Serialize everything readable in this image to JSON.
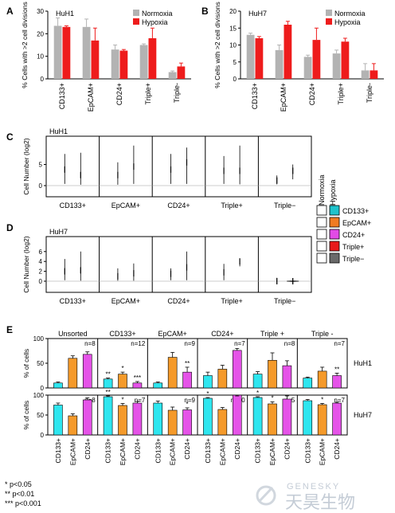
{
  "colors": {
    "normoxia": "#b3b3b3",
    "hypoxia": "#ee1c1c",
    "cd133": "#1fc3cc",
    "epcam": "#f07b22",
    "cd24": "#e24be6",
    "triple_pos": "#e8191b",
    "triple_neg": "#6a6a6a",
    "e_cd133": "#2ee6ef",
    "e_epcam": "#f59a2a",
    "e_cd24": "#e553e8"
  },
  "panel_letters": {
    "a": "A",
    "b": "B",
    "c": "C",
    "d": "D",
    "e": "E"
  },
  "footnotes": [
    "* p<0.05",
    "** p<0.01",
    "*** p<0.001"
  ],
  "watermark": {
    "latin": "GENESKY",
    "chinese": "天昊生物"
  },
  "chart_data": [
    {
      "id": "A",
      "type": "bar",
      "title": "HuH1",
      "ylabel": "% Cells with >2 cell divisions",
      "ylim": [
        0,
        30
      ],
      "yticks": [
        0,
        10,
        20,
        30
      ],
      "legend": "top-right",
      "categories": [
        "CD133+",
        "EpCAM+",
        "CD24+",
        "Triple+",
        "Triple-"
      ],
      "series": [
        {
          "name": "Normoxia",
          "values": [
            23.5,
            23,
            13,
            15,
            3
          ],
          "errors": [
            3.5,
            3.5,
            2,
            0.5,
            0.5
          ]
        },
        {
          "name": "Hypoxia",
          "values": [
            23,
            17,
            12.5,
            18,
            5.5
          ],
          "errors": [
            0.5,
            5.5,
            0.5,
            4.5,
            1.5
          ]
        }
      ]
    },
    {
      "id": "B",
      "type": "bar",
      "title": "HuH7",
      "ylabel": "% Cells with >2 cell divisions",
      "ylim": [
        0,
        20
      ],
      "yticks": [
        0,
        5,
        10,
        15,
        20
      ],
      "legend": "top-right",
      "categories": [
        "CD133+",
        "EpCAM+",
        "CD24+",
        "Triple+",
        "Triple-"
      ],
      "series": [
        {
          "name": "Normoxia",
          "values": [
            13,
            8.5,
            6.5,
            7.5,
            2.5
          ],
          "errors": [
            0.5,
            1.5,
            0.5,
            1,
            2
          ]
        },
        {
          "name": "Hypoxia",
          "values": [
            12,
            16,
            11.5,
            11,
            2.5
          ],
          "errors": [
            0.5,
            1,
            3.5,
            1,
            2
          ]
        }
      ]
    },
    {
      "id": "C",
      "type": "violin",
      "title": "HuH1",
      "ylabel": "Cell Number (log2)",
      "yticks": [
        0,
        5
      ],
      "categories": [
        "CD133+",
        "EpCAM+",
        "CD24+",
        "Triple+",
        "Triple−"
      ],
      "colors": [
        "#1fc3cc",
        "#f07b22",
        "#e24be6",
        "#e8191b",
        "#6a6a6a"
      ],
      "normoxia": [
        {
          "center": 3.8,
          "min": 0.4,
          "max": 7.5,
          "width": 0.65
        },
        {
          "center": 2.5,
          "min": 0.2,
          "max": 5.5,
          "width": 0.8
        },
        {
          "center": 3.8,
          "min": 0.4,
          "max": 7.5,
          "width": 0.6
        },
        {
          "center": 3.5,
          "min": 0.4,
          "max": 7.0,
          "width": 0.6
        },
        {
          "center": 1.2,
          "min": 0.3,
          "max": 2.4,
          "width": 0.9
        }
      ],
      "hypoxia": [
        {
          "center": 2.5,
          "min": 0.2,
          "max": 7.8,
          "width": 0.6
        },
        {
          "center": 4.5,
          "min": 0.4,
          "max": 9.5,
          "width": 0.6
        },
        {
          "center": 5.5,
          "min": 0.4,
          "max": 9.0,
          "width": 0.55
        },
        {
          "center": 3.5,
          "min": 0.3,
          "max": 9.5,
          "width": 0.5
        },
        {
          "center": 3.5,
          "min": 1.5,
          "max": 5.0,
          "width": 0.7
        }
      ]
    },
    {
      "id": "D",
      "type": "violin",
      "title": "HuH7",
      "ylabel": "Cell Number (log2)",
      "yticks": [
        0,
        2,
        4,
        6
      ],
      "categories": [
        "CD133+",
        "EpCAM+",
        "CD24+",
        "Triple+",
        "Triple−"
      ],
      "colors": [
        "#1fc3cc",
        "#f07b22",
        "#e24be6",
        "#e8191b",
        "#6a6a6a"
      ],
      "normoxia": [
        {
          "center": 2.0,
          "min": 0.2,
          "max": 4.5,
          "width": 0.75
        },
        {
          "center": 1.0,
          "min": 0.1,
          "max": 2.6,
          "width": 1.0
        },
        {
          "center": 1.5,
          "min": 0.2,
          "max": 2.6,
          "width": 0.8
        },
        {
          "center": 1.8,
          "min": 0.2,
          "max": 3.5,
          "width": 0.75
        },
        {
          "center": 0.0,
          "min": -0.6,
          "max": 0.7,
          "width": 0.85
        }
      ],
      "hypoxia": [
        {
          "center": 2.2,
          "min": 0.1,
          "max": 6.0,
          "width": 0.7
        },
        {
          "center": 1.6,
          "min": 0.1,
          "max": 3.6,
          "width": 0.75
        },
        {
          "center": 2.8,
          "min": 0.2,
          "max": 6.0,
          "width": 0.5
        },
        {
          "center": 4.0,
          "min": 3.0,
          "max": 4.6,
          "width": 1.0
        },
        {
          "center": 0.0,
          "min": -0.6,
          "max": 0.6,
          "width": 0.75
        }
      ]
    },
    {
      "id": "E",
      "type": "bar",
      "title": "",
      "ylabel": "% of cells",
      "ylim": [
        0,
        100
      ],
      "yticks": [
        0,
        50,
        100
      ],
      "groups": [
        "Unsorted",
        "CD133+",
        "EpCAM+",
        "CD24+",
        "Triple +",
        "Triple -"
      ],
      "categories": [
        "CD133+",
        "EpCAM+",
        "CD24+"
      ],
      "rows": [
        {
          "name": "HuH1",
          "n": [
            "n=8",
            "n=12",
            "n=9",
            "n=7",
            "n=8",
            "n=7"
          ],
          "values": [
            [
              10,
              60,
              68
            ],
            [
              18,
              28,
              10
            ],
            [
              10,
              62,
              32
            ],
            [
              25,
              38,
              76
            ],
            [
              28,
              56,
              45
            ],
            [
              20,
              34,
              25
            ]
          ],
          "errors": [
            [
              2,
              5,
              5
            ],
            [
              2,
              4,
              3
            ],
            [
              2,
              10,
              10
            ],
            [
              7,
              8,
              4
            ],
            [
              5,
              15,
              10
            ],
            [
              2,
              8,
              5
            ]
          ],
          "stars": [
            [
              "",
              "",
              ""
            ],
            [
              "**",
              "*",
              "***"
            ],
            [
              "",
              "",
              "**"
            ],
            [
              "",
              "",
              ""
            ],
            [
              "",
              "",
              ""
            ],
            [
              "",
              "",
              "**"
            ]
          ]
        },
        {
          "name": "HuH7",
          "n": [
            "n=8",
            "n=7",
            "n=9",
            "n=10",
            "n=5",
            "n=7"
          ],
          "values": [
            [
              75,
              48,
              88
            ],
            [
              96,
              74,
              80
            ],
            [
              80,
              62,
              63
            ],
            [
              92,
              64,
              100
            ],
            [
              94,
              78,
              90
            ],
            [
              86,
              76,
              80
            ]
          ],
          "errors": [
            [
              5,
              5,
              5
            ],
            [
              2,
              5,
              4
            ],
            [
              5,
              8,
              5
            ],
            [
              2,
              5,
              2
            ],
            [
              2,
              5,
              8
            ],
            [
              3,
              3,
              2
            ]
          ],
          "stars": [
            [
              "",
              "",
              ""
            ],
            [
              "**",
              "*",
              ""
            ],
            [
              "",
              "",
              "*"
            ],
            [
              "*",
              "",
              ""
            ],
            [
              "*",
              "*",
              ""
            ],
            [
              "",
              "*",
              ""
            ]
          ]
        }
      ],
      "legend": {
        "header": [
          "Normoxia",
          "Hypoxia"
        ],
        "entries": [
          {
            "name": "CD133+"
          },
          {
            "name": "EpCAM+"
          },
          {
            "name": "CD24+"
          },
          {
            "name": "Triple+"
          },
          {
            "name": "Triple−"
          }
        ]
      }
    }
  ]
}
